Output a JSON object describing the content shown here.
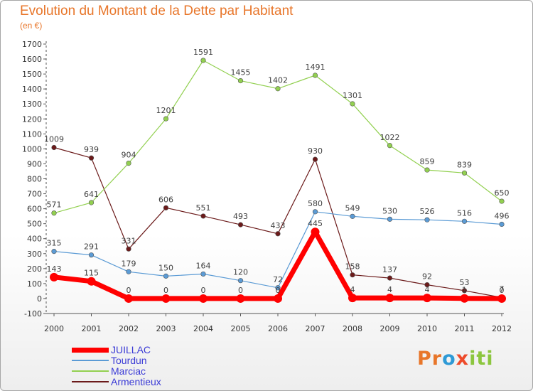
{
  "title": "Evolution du Montant de la Dette par Habitant",
  "subtitle": "(en €)",
  "brand": "Proxiti",
  "chart_data": {
    "type": "line",
    "x": [
      "2000",
      "2001",
      "2002",
      "2003",
      "2004",
      "2005",
      "2006",
      "2007",
      "2008",
      "2009",
      "2010",
      "2011",
      "2012"
    ],
    "ylim": [
      -100,
      1700
    ],
    "yticks": [
      -100,
      0,
      100,
      200,
      300,
      400,
      500,
      600,
      700,
      800,
      900,
      1000,
      1100,
      1200,
      1300,
      1400,
      1500,
      1600,
      1700
    ],
    "grid": false,
    "legend_position": "bottom-left",
    "series": [
      {
        "name": "JUILLAC",
        "color": "#ff0000",
        "values": [
          143,
          115,
          0,
          0,
          0,
          0,
          0,
          445,
          4,
          4,
          4,
          1,
          0
        ],
        "labels": [
          "143",
          "115",
          "0",
          "0",
          "0",
          "0",
          "0",
          "445",
          "4",
          "4",
          "4",
          "1",
          "0"
        ]
      },
      {
        "name": "Tourdun",
        "color": "#5b9bd5",
        "values": [
          315,
          291,
          179,
          150,
          164,
          120,
          72,
          580,
          549,
          530,
          526,
          516,
          496
        ],
        "labels": [
          "315",
          "291",
          "179",
          "150",
          "164",
          "120",
          "72",
          "580",
          "549",
          "530",
          "526",
          "516",
          "496"
        ]
      },
      {
        "name": "Marciac",
        "color": "#92d050",
        "values": [
          571,
          641,
          904,
          1201,
          1591,
          1455,
          1402,
          1491,
          1301,
          1022,
          859,
          839,
          650
        ],
        "labels": [
          "571",
          "641",
          "904",
          "1201",
          "1591",
          "1455",
          "1402",
          "1491",
          "1301",
          "1022",
          "859",
          "839",
          "650"
        ]
      },
      {
        "name": "Armentieux",
        "color": "#6b1a1a",
        "values": [
          1009,
          939,
          331,
          606,
          551,
          493,
          433,
          930,
          158,
          137,
          92,
          53,
          7
        ],
        "labels": [
          "1009",
          "939",
          "331",
          "606",
          "551",
          "493",
          "433",
          "930",
          "158",
          "137",
          "92",
          "53",
          "7"
        ]
      }
    ]
  }
}
